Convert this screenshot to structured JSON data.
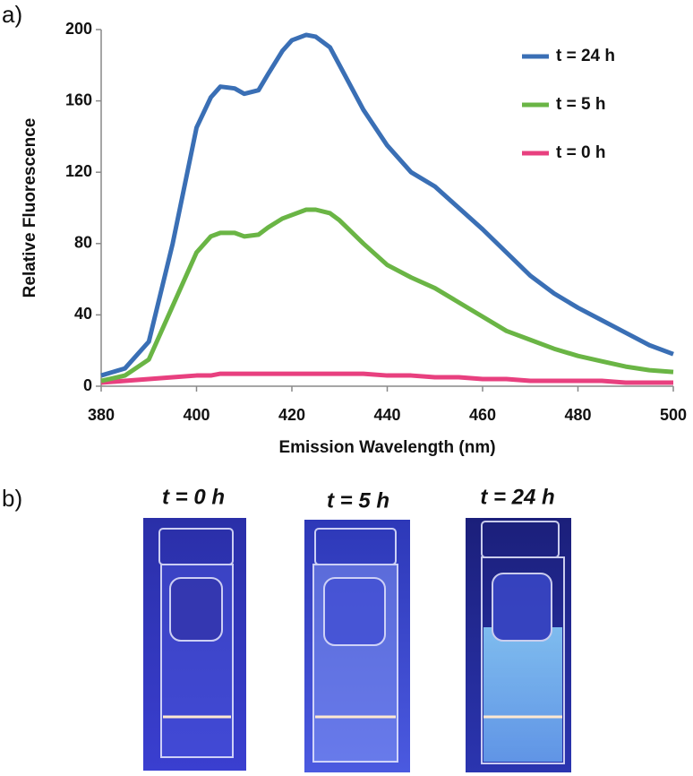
{
  "chart_data": {
    "type": "line",
    "xlabel": "Emission Wavelength (nm)",
    "ylabel": "Relative Fluorescence",
    "x": [
      380,
      385,
      390,
      395,
      400,
      403,
      405,
      408,
      410,
      413,
      415,
      418,
      420,
      423,
      425,
      428,
      430,
      435,
      440,
      445,
      450,
      455,
      460,
      465,
      470,
      475,
      480,
      485,
      490,
      495,
      500
    ],
    "series": [
      {
        "name": "t = 24 h",
        "color": "#3a6fb5",
        "values": [
          6,
          10,
          25,
          80,
          145,
          162,
          168,
          167,
          164,
          166,
          175,
          188,
          194,
          197,
          196,
          190,
          180,
          155,
          135,
          120,
          112,
          100,
          88,
          75,
          62,
          52,
          44,
          37,
          30,
          23,
          18
        ]
      },
      {
        "name": "t = 5 h",
        "color": "#6ab545",
        "values": [
          3,
          6,
          15,
          45,
          75,
          84,
          86,
          86,
          84,
          85,
          89,
          94,
          96,
          99,
          99,
          97,
          93,
          80,
          68,
          61,
          55,
          47,
          39,
          31,
          26,
          21,
          17,
          14,
          11,
          9,
          8
        ]
      },
      {
        "name": "t = 0 h",
        "color": "#e8407f",
        "values": [
          2,
          3,
          4,
          5,
          6,
          6,
          7,
          7,
          7,
          7,
          7,
          7,
          7,
          7,
          7,
          7,
          7,
          7,
          6,
          6,
          5,
          5,
          4,
          4,
          3,
          3,
          3,
          3,
          2,
          2,
          2
        ]
      }
    ],
    "xlim": [
      380,
      500
    ],
    "xticks": [
      380,
      400,
      420,
      440,
      460,
      480,
      500
    ],
    "ylim": [
      0,
      200
    ],
    "yticks": [
      0,
      40,
      80,
      120,
      160,
      200
    ],
    "grid": false,
    "legend": "upper right"
  },
  "panel_labels": [
    "a)",
    "b)"
  ],
  "photos": [
    {
      "caption": "t = 0 h"
    },
    {
      "caption": "t = 5 h"
    },
    {
      "caption": "t = 24 h"
    }
  ]
}
